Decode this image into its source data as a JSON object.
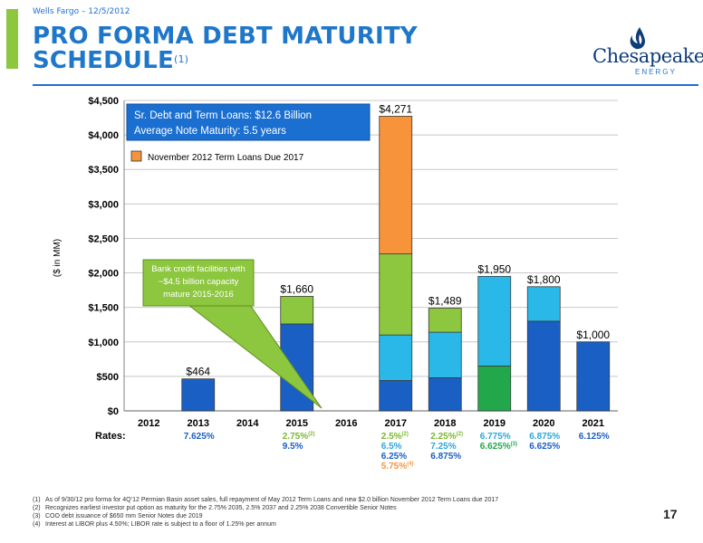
{
  "header": {
    "source_line": "Wells Fargo – 12/5/2012",
    "title_line1": "PRO FORMA DEBT MATURITY",
    "title_line2": "SCHEDULE",
    "title_footnote": "(1)"
  },
  "logo": {
    "name": "Chesapeake",
    "sub": "ENERGY"
  },
  "chart_data": {
    "type": "bar",
    "stacked": true,
    "ylabel": "($ in MM)",
    "ylim": [
      0,
      4500
    ],
    "y_ticks": [
      "$0",
      "$500",
      "$1,000",
      "$1,500",
      "$2,000",
      "$2,500",
      "$3,000",
      "$3,500",
      "$4,000",
      "$4,500"
    ],
    "y_tick_values": [
      0,
      500,
      1000,
      1500,
      2000,
      2500,
      3000,
      3500,
      4000,
      4500
    ],
    "grid": true,
    "categories": [
      "2012",
      "2013",
      "2014",
      "2015",
      "2016",
      "2017",
      "2018",
      "2019",
      "2020",
      "2021"
    ],
    "stacks": [
      [],
      [
        {
          "value": 464,
          "color": "#1a5fc4"
        }
      ],
      [],
      [
        {
          "value": 1260,
          "color": "#1a5fc4"
        },
        {
          "value": 400,
          "color": "#8dc63f"
        }
      ],
      [],
      [
        {
          "value": 440,
          "color": "#1a5fc4"
        },
        {
          "value": 660,
          "color": "#29b8e8"
        },
        {
          "value": 1175,
          "color": "#8dc63f"
        },
        {
          "value": 1996,
          "color": "#f7943b"
        }
      ],
      [
        {
          "value": 480,
          "color": "#1a5fc4"
        },
        {
          "value": 660,
          "color": "#29b8e8"
        },
        {
          "value": 349,
          "color": "#8dc63f"
        }
      ],
      [
        {
          "value": 650,
          "color": "#22a84a"
        },
        {
          "value": 1300,
          "color": "#29b8e8"
        }
      ],
      [
        {
          "value": 1300,
          "color": "#1a5fc4"
        },
        {
          "value": 500,
          "color": "#29b8e8"
        }
      ],
      [
        {
          "value": 1000,
          "color": "#1a5fc4"
        }
      ]
    ],
    "totals": [
      null,
      464,
      null,
      1660,
      null,
      4271,
      1489,
      1950,
      1800,
      1000
    ],
    "total_labels": [
      "",
      "$464",
      "",
      "$1,660",
      "",
      "$4,271",
      "$1,489",
      "$1,950",
      "$1,800",
      "$1,000"
    ],
    "info_box": {
      "line1": "Sr. Debt and Term Loans: $12.6 Billion",
      "line2": "Average Note Maturity: 5.5 years"
    },
    "legend": {
      "label": "November 2012 Term Loans Due 2017",
      "color": "#f7943b",
      "placement": "top-left"
    },
    "callout": {
      "line1": "Bank credit facilities with",
      "line2": "~$4.5 billion capacity",
      "line3": "mature 2015-2016"
    },
    "rates_label": "Rates:",
    "rates": [
      {
        "category": "2013",
        "lines": [
          {
            "text": "7.625%",
            "color": "#1a5fc4"
          }
        ]
      },
      {
        "category": "2015",
        "lines": [
          {
            "text": "2.75%",
            "sup": "(2)",
            "color": "#7ab72f"
          },
          {
            "text": "9.5%",
            "color": "#1a5fc4"
          }
        ]
      },
      {
        "category": "2017",
        "lines": [
          {
            "text": "2.5%",
            "sup": "(2)",
            "color": "#7ab72f"
          },
          {
            "text": "6.5%",
            "color": "#29a8d8"
          },
          {
            "text": "6.25%",
            "color": "#1a5fc4"
          },
          {
            "text": "5.75%",
            "sup": "(4)",
            "color": "#f7943b"
          }
        ]
      },
      {
        "category": "2018",
        "lines": [
          {
            "text": "2.25%",
            "sup": "(2)",
            "color": "#7ab72f"
          },
          {
            "text": "7.25%",
            "color": "#29a8d8"
          },
          {
            "text": "6.875%",
            "color": "#1a5fc4"
          }
        ]
      },
      {
        "category": "2019",
        "lines": [
          {
            "text": "6.775%",
            "color": "#29a8d8"
          },
          {
            "text": "6.625%",
            "sup": "(3)",
            "color": "#22a84a"
          }
        ]
      },
      {
        "category": "2020",
        "lines": [
          {
            "text": "6.875%",
            "color": "#29a8d8"
          },
          {
            "text": "6.625%",
            "color": "#1a5fc4"
          }
        ]
      },
      {
        "category": "2021",
        "lines": [
          {
            "text": "6.125%",
            "color": "#1a5fc4"
          }
        ]
      }
    ]
  },
  "footnotes": [
    {
      "num": "(1)",
      "text": "As of 9/30/12 pro forma for 4Q’12 Permian Basin asset sales, full repayment of May 2012 Term Loans and new $2.0 billion November 2012 Term Loans due 2017"
    },
    {
      "num": "(2)",
      "text": "Recognizes earliest investor put option as maturity for the 2.75% 2035, 2.5% 2037 and 2.25% 2038 Convertible Senior Notes"
    },
    {
      "num": "(3)",
      "text": "COO debt issuance of $650 mm Senior Notes due 2019"
    },
    {
      "num": "(4)",
      "text": "Interest at LIBOR plus 4.50%; LIBOR rate is subject to a floor of 1.25% per annum"
    }
  ],
  "page_number": "17"
}
